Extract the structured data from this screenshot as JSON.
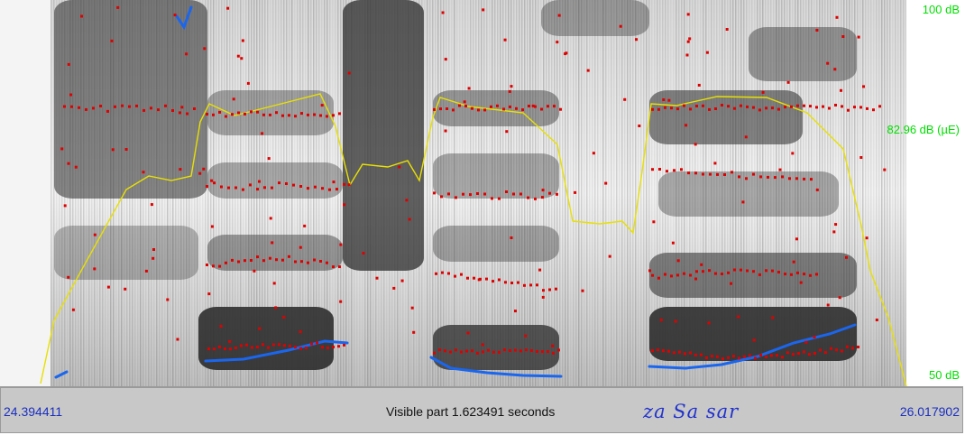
{
  "spectrogram": {
    "db_top_label": "100 dB",
    "db_mid_label": "82.96 dB (µE)",
    "db_bottom_label": "50 dB"
  },
  "status_bar": {
    "start_time": "24.394411",
    "visible_part": "Visible part 1.623491 seconds",
    "transcription": "za Sa sar",
    "end_time": "26.017902"
  },
  "colors": {
    "formant_dots": "#e00000",
    "intensity_curve": "#e8e000",
    "pitch_curve": "#1a66ee",
    "db_labels": "#00e000",
    "time_labels": "#1a2fbf"
  }
}
